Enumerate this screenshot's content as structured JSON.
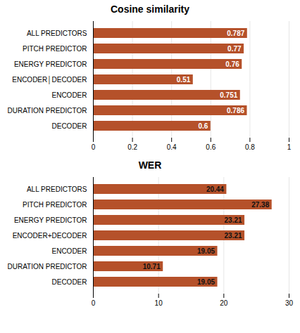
{
  "chart_data": [
    {
      "type": "bar",
      "title": "Cosine similarity",
      "orientation": "horizontal",
      "categories": [
        "ALL PREDICTORS",
        "PITCH PREDICTOR",
        "ENERGY PREDICTOR",
        "ENCODER│DECODER",
        "ENCODER",
        "DURATION PREDICTOR",
        "DECODER"
      ],
      "values": [
        0.787,
        0.77,
        0.76,
        0.51,
        0.751,
        0.786,
        0.6
      ],
      "color": "#b5512a",
      "xlim": [
        0,
        1
      ],
      "xticks": [
        0,
        0.2,
        0.4,
        0.6,
        0.8,
        1
      ],
      "grid": true,
      "data_labels": true
    },
    {
      "type": "bar",
      "title": "WER",
      "orientation": "horizontal",
      "categories": [
        "ALL PREDICTORS",
        "PITCH PREDICTOR",
        "ENERGY PREDICTOR",
        "ENCODER+DECODER",
        "ENCODER",
        "DURATION PREDICTOR",
        "DECODER"
      ],
      "values": [
        20.44,
        27.38,
        23.21,
        23.21,
        19.05,
        10.71,
        19.05
      ],
      "color": "#b5512a",
      "xlim": [
        0,
        30
      ],
      "xticks": [
        0,
        10,
        20,
        30
      ],
      "grid": true,
      "data_labels": true
    }
  ]
}
